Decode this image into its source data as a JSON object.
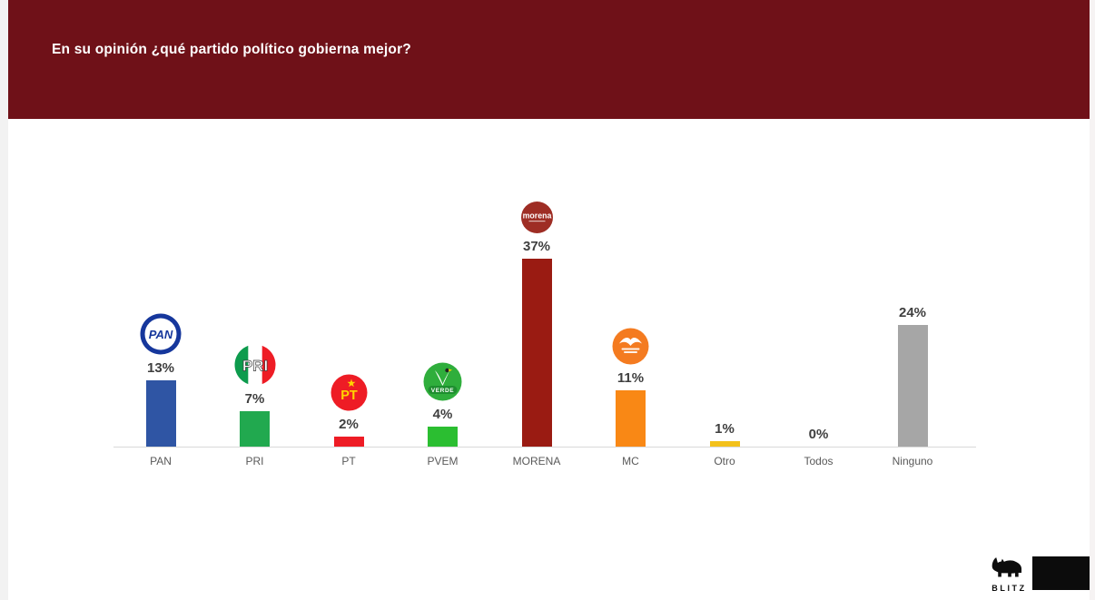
{
  "header": {
    "title": "En su opinión ¿qué partido político gobierna mejor?",
    "bg_color": "#6f1118",
    "text_color": "#ffffff"
  },
  "chart_data": {
    "type": "bar",
    "title": "En su opinión ¿qué partido político gobierna mejor?",
    "categories": [
      "PAN",
      "PRI",
      "PT",
      "PVEM",
      "MORENA",
      "MC",
      "Otro",
      "Todos",
      "Ninguno"
    ],
    "values": [
      13,
      7,
      2,
      4,
      37,
      11,
      1,
      0,
      24
    ],
    "value_labels": [
      "13%",
      "7%",
      "2%",
      "4%",
      "37%",
      "11%",
      "1%",
      "0%",
      "24%"
    ],
    "unit": "%",
    "ylim": [
      0,
      40
    ],
    "grid": false,
    "legend": false,
    "bar_colors": [
      "#2f55a4",
      "#21a94f",
      "#ee1c25",
      "#2bbe31",
      "#9a1b12",
      "#f98815",
      "#f3c11b",
      "#a6a6a6",
      "#a6a6a6"
    ],
    "axis_line_color": "#d9d9d9",
    "value_label_color": "#3f3f3f",
    "category_label_color": "#595959",
    "logos": [
      {
        "category": "PAN",
        "type": "pan",
        "text": "PAN",
        "color": "#16379c",
        "size": 46
      },
      {
        "category": "PRI",
        "type": "pri",
        "text": "PRI",
        "colors": [
          "#0d9b4d",
          "#ffffff",
          "#ee1c25"
        ],
        "size": 46
      },
      {
        "category": "PT",
        "type": "pt",
        "text": "PT",
        "color": "#ee1c25",
        "text_color": "#ffd400",
        "size": 41
      },
      {
        "category": "PVEM",
        "type": "pvem",
        "text": "VERDE",
        "color": "#2fae3c",
        "band_color": "#1e8e2f",
        "size": 43
      },
      {
        "category": "MORENA",
        "type": "morena",
        "text": "morena",
        "color": "#9e2d24",
        "size": 35
      },
      {
        "category": "MC",
        "type": "mc",
        "text": "",
        "color": "#f47b20",
        "size": 41
      }
    ]
  },
  "footer": {
    "brand": "BLITZ"
  }
}
